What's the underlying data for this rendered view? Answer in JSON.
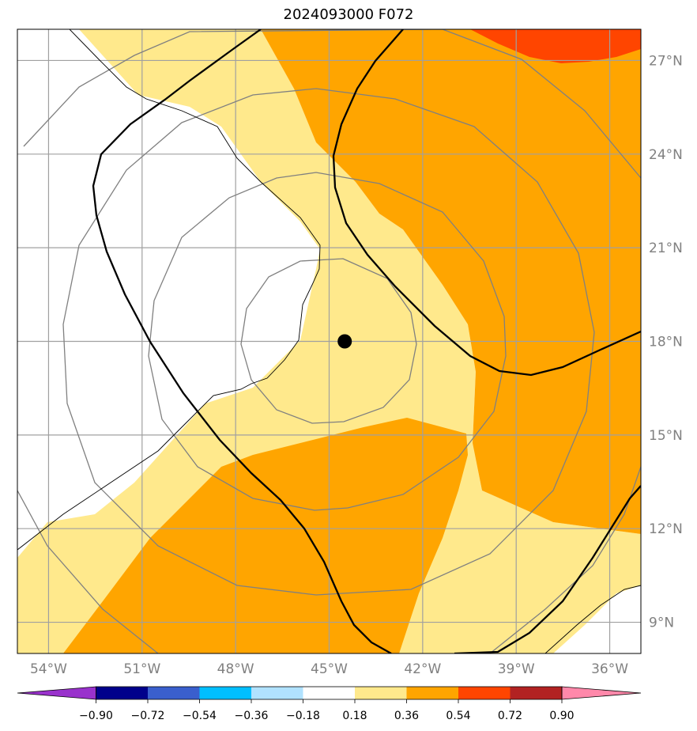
{
  "title": "2024093000 F072",
  "map": {
    "lon_range": [
      -55,
      -35
    ],
    "lat_range": [
      8,
      28
    ],
    "center_marker": {
      "lon": -44.5,
      "lat": 18.0
    },
    "lon_ticks": [
      {
        "value": -54,
        "label": "54°W"
      },
      {
        "value": -51,
        "label": "51°W"
      },
      {
        "value": -48,
        "label": "48°W"
      },
      {
        "value": -45,
        "label": "45°W"
      },
      {
        "value": -42,
        "label": "42°W"
      },
      {
        "value": -39,
        "label": "39°W"
      },
      {
        "value": -36,
        "label": "36°W"
      }
    ],
    "lat_ticks": [
      {
        "value": 27,
        "label": "27°N"
      },
      {
        "value": 24,
        "label": "24°N"
      },
      {
        "value": 21,
        "label": "21°N"
      },
      {
        "value": 18,
        "label": "18°N"
      },
      {
        "value": 15,
        "label": "15°N"
      },
      {
        "value": 12,
        "label": "12°N"
      },
      {
        "value": 9,
        "label": "9°N"
      }
    ]
  },
  "colorbar": {
    "colors": [
      "#9932CC",
      "#00008B",
      "#3A5FCD",
      "#00BFFF",
      "#B0E2FF",
      "#FFFFFF",
      "#FFE98C",
      "#FFA500",
      "#FF4500",
      "#B22222",
      "#FF88AA"
    ],
    "labels": [
      "−0.90",
      "−0.72",
      "−0.54",
      "−0.36",
      "−0.18",
      "0.18",
      "0.36",
      "0.54",
      "0.72",
      "0.90"
    ]
  },
  "colors": {
    "fill_light": "#FFE98C",
    "fill_orange": "#FFA500",
    "fill_red": "#FF4500",
    "grid": "#a0a0a0",
    "rings": "#808080",
    "contour": "#000000"
  }
}
